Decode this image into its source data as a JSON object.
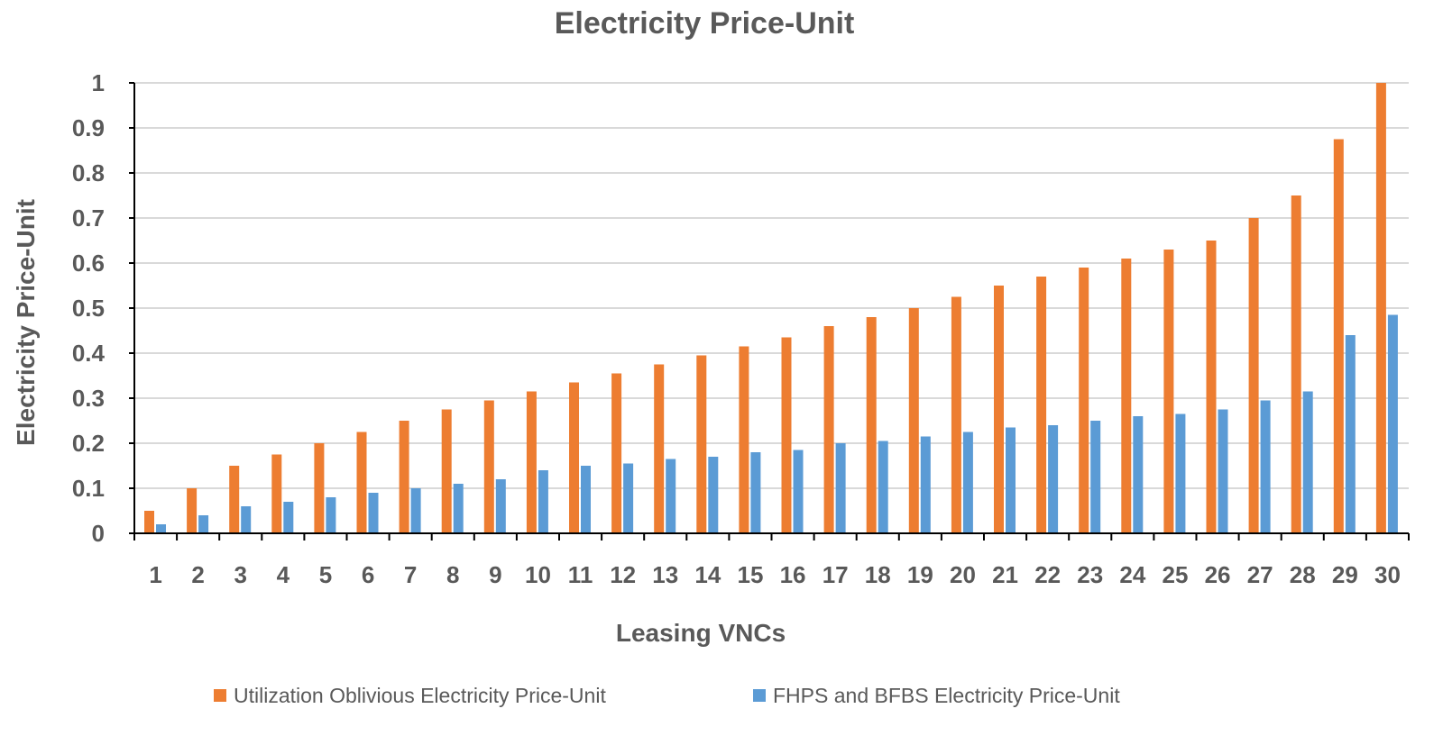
{
  "chart_data": {
    "type": "bar",
    "title": "Electricity Price-Unit",
    "xlabel": "Leasing VNCs",
    "ylabel": "Electricity Price-Unit",
    "ylim": [
      0,
      1
    ],
    "yticks": [
      0,
      0.1,
      0.2,
      0.3,
      0.4,
      0.5,
      0.6,
      0.7,
      0.8,
      0.9,
      1
    ],
    "ytick_labels": [
      "0",
      "0.1",
      "0.2",
      "0.3",
      "0.4",
      "0.5",
      "0.6",
      "0.7",
      "0.8",
      "0.9",
      "1"
    ],
    "grid": true,
    "legend_position": "bottom",
    "categories": [
      "1",
      "2",
      "3",
      "4",
      "5",
      "6",
      "7",
      "8",
      "9",
      "10",
      "11",
      "12",
      "13",
      "14",
      "15",
      "16",
      "17",
      "18",
      "19",
      "20",
      "21",
      "22",
      "23",
      "24",
      "25",
      "26",
      "27",
      "28",
      "29",
      "30"
    ],
    "series": [
      {
        "name": "Utilization Oblivious Electricity Price-Unit",
        "color": "#ED7D31",
        "values": [
          0.05,
          0.1,
          0.15,
          0.175,
          0.2,
          0.225,
          0.25,
          0.275,
          0.295,
          0.315,
          0.335,
          0.355,
          0.375,
          0.395,
          0.415,
          0.435,
          0.46,
          0.48,
          0.5,
          0.525,
          0.55,
          0.57,
          0.59,
          0.61,
          0.63,
          0.65,
          0.7,
          0.75,
          0.875,
          1.0
        ]
      },
      {
        "name": "FHPS and BFBS Electricity Price-Unit",
        "color": "#5B9BD5",
        "values": [
          0.02,
          0.04,
          0.06,
          0.07,
          0.08,
          0.09,
          0.1,
          0.11,
          0.12,
          0.14,
          0.15,
          0.155,
          0.165,
          0.17,
          0.18,
          0.185,
          0.2,
          0.205,
          0.215,
          0.225,
          0.235,
          0.24,
          0.25,
          0.26,
          0.265,
          0.275,
          0.295,
          0.315,
          0.44,
          0.485
        ]
      }
    ]
  }
}
